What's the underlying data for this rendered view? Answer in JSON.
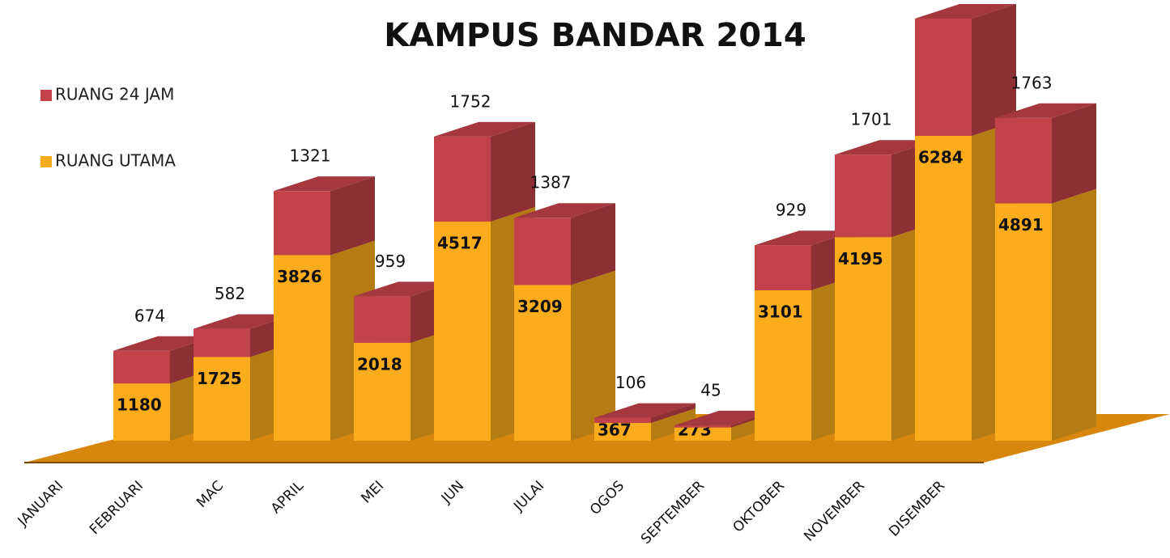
{
  "chart_data": {
    "type": "bar3d_stacked",
    "title": "KAMPUS BANDAR 2014",
    "categories": [
      "JANUARI",
      "FEBRUARI",
      "MAC",
      "APRIL",
      "MEI",
      "JUN",
      "JULAI",
      "OGOS",
      "SEPTEMBER",
      "OKTOBER",
      "NOVEMBER",
      "DISEMBER"
    ],
    "series": [
      {
        "name": "RUANG UTAMA",
        "color": "#fbac1c",
        "values": [
          1180,
          1725,
          3826,
          2018,
          4517,
          3209,
          367,
          273,
          3101,
          4195,
          6284,
          4891
        ]
      },
      {
        "name": "RUANG 24 JAM",
        "color": "#c2424a",
        "values": [
          674,
          582,
          1321,
          959,
          1752,
          1387,
          106,
          45,
          929,
          1701,
          2416,
          1763
        ]
      }
    ],
    "legend": "top-left"
  }
}
